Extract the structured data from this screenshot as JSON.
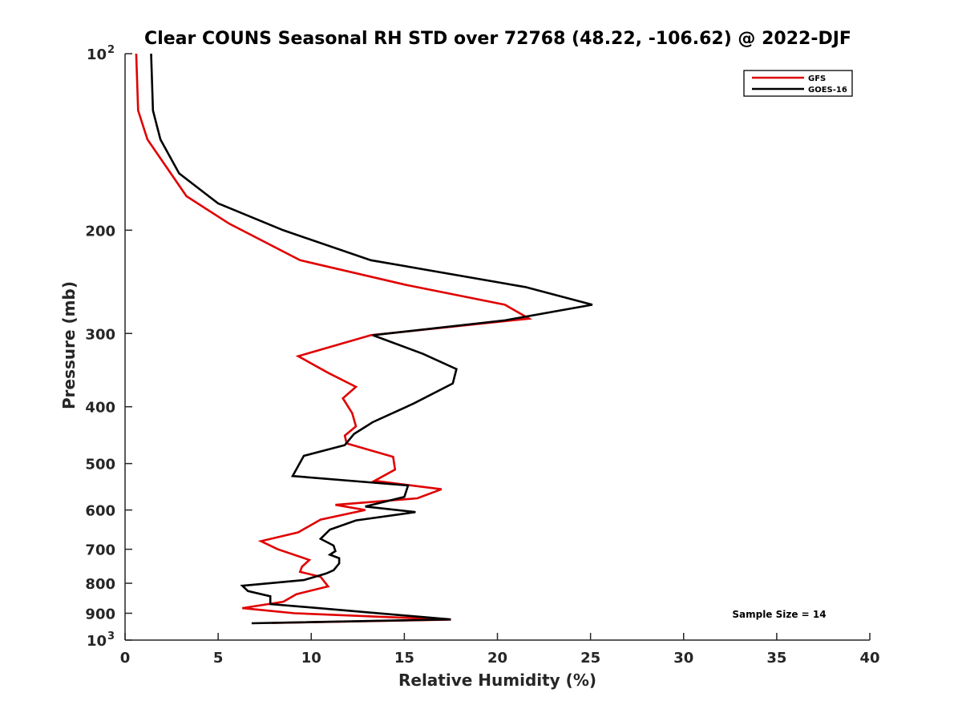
{
  "chart_data": {
    "type": "line",
    "title": "Clear COUNS Seasonal RH STD over 72768 (48.22, -106.62) @ 2022-DJF",
    "xlabel": "Relative Humidity (%)",
    "ylabel": "Pressure (mb)",
    "xlim": [
      0,
      40
    ],
    "ylim": [
      100,
      1000
    ],
    "yscale": "log",
    "y_reversed": true,
    "x_ticks": [
      0,
      5,
      10,
      15,
      20,
      25,
      30,
      35,
      40
    ],
    "x_tick_labels": [
      "0",
      "5",
      "10",
      "15",
      "20",
      "25",
      "30",
      "35",
      "40"
    ],
    "y_ticks": [
      100,
      200,
      300,
      400,
      500,
      600,
      700,
      800,
      900,
      1000
    ],
    "y_tick_labels": [
      {
        "base": "10",
        "exp": "2"
      },
      {
        "base": "200",
        "exp": ""
      },
      {
        "base": "300",
        "exp": ""
      },
      {
        "base": "400",
        "exp": ""
      },
      {
        "base": "500",
        "exp": ""
      },
      {
        "base": "600",
        "exp": ""
      },
      {
        "base": "700",
        "exp": ""
      },
      {
        "base": "800",
        "exp": ""
      },
      {
        "base": "900",
        "exp": ""
      },
      {
        "base": "10",
        "exp": "3"
      }
    ],
    "legend_position": "top-right",
    "annotation": "Sample Size = 14",
    "series": [
      {
        "name": "GFS",
        "color": "#e00000",
        "points": [
          [
            0.6,
            100
          ],
          [
            0.7,
            125
          ],
          [
            1.2,
            140
          ],
          [
            3.3,
            175
          ],
          [
            5.6,
            195
          ],
          [
            9.4,
            225
          ],
          [
            15.1,
            248
          ],
          [
            20.4,
            268
          ],
          [
            21.7,
            283
          ],
          [
            13.2,
            302
          ],
          [
            9.3,
            328
          ],
          [
            10.9,
            350
          ],
          [
            12.4,
            370
          ],
          [
            11.7,
            387
          ],
          [
            12.2,
            410
          ],
          [
            12.4,
            432
          ],
          [
            11.8,
            448
          ],
          [
            11.9,
            462
          ],
          [
            14.4,
            487
          ],
          [
            14.5,
            512
          ],
          [
            13.4,
            535
          ],
          [
            17.0,
            553
          ],
          [
            15.7,
            573
          ],
          [
            11.3,
            588
          ],
          [
            12.9,
            600
          ],
          [
            10.5,
            623
          ],
          [
            9.3,
            655
          ],
          [
            7.3,
            678
          ],
          [
            8.2,
            700
          ],
          [
            9.9,
            730
          ],
          [
            9.5,
            750
          ],
          [
            9.4,
            765
          ],
          [
            10.5,
            780
          ],
          [
            10.9,
            810
          ],
          [
            9.2,
            835
          ],
          [
            8.5,
            860
          ],
          [
            6.3,
            882
          ],
          [
            9.1,
            900
          ],
          [
            17.5,
            923
          ],
          [
            7.9,
            935
          ]
        ]
      },
      {
        "name": "GOES-16",
        "color": "#000000",
        "points": [
          [
            1.4,
            100
          ],
          [
            1.5,
            125
          ],
          [
            1.9,
            140
          ],
          [
            2.9,
            160
          ],
          [
            5.0,
            180
          ],
          [
            8.5,
            200
          ],
          [
            13.2,
            225
          ],
          [
            21.5,
            250
          ],
          [
            25.1,
            268
          ],
          [
            20.4,
            285
          ],
          [
            13.3,
            302
          ],
          [
            16.0,
            325
          ],
          [
            17.8,
            345
          ],
          [
            17.6,
            365
          ],
          [
            15.5,
            395
          ],
          [
            13.3,
            425
          ],
          [
            12.3,
            445
          ],
          [
            11.8,
            465
          ],
          [
            9.6,
            485
          ],
          [
            9.0,
            525
          ],
          [
            15.2,
            545
          ],
          [
            15.0,
            570
          ],
          [
            12.9,
            592
          ],
          [
            15.6,
            605
          ],
          [
            12.4,
            625
          ],
          [
            11.0,
            648
          ],
          [
            10.5,
            672
          ],
          [
            11.2,
            690
          ],
          [
            11.3,
            705
          ],
          [
            11.0,
            715
          ],
          [
            11.5,
            725
          ],
          [
            11.5,
            740
          ],
          [
            11.2,
            760
          ],
          [
            10.8,
            770
          ],
          [
            9.6,
            790
          ],
          [
            6.3,
            808
          ],
          [
            6.6,
            825
          ],
          [
            7.8,
            842
          ],
          [
            7.8,
            868
          ],
          [
            17.5,
            922
          ],
          [
            6.8,
            936
          ]
        ]
      }
    ]
  }
}
